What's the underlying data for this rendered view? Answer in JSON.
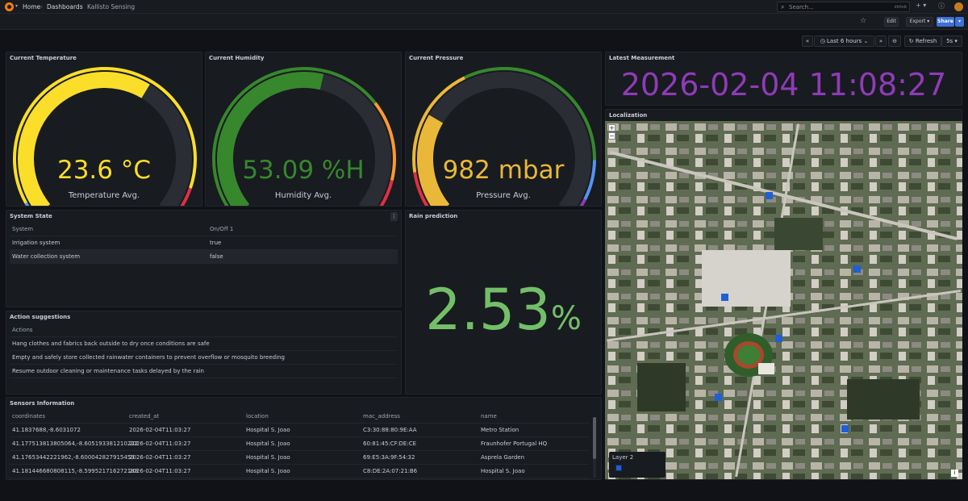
{
  "breadcrumbs": [
    "Home",
    "Dashboards",
    "Kallisto Sensing"
  ],
  "search": {
    "placeholder": "Search...",
    "shortcut": "ctrl+k"
  },
  "toolbar": {
    "edit": "Edit",
    "export": "Export",
    "share": "Share"
  },
  "time": {
    "range": "Last 6 hours",
    "refresh": "Refresh",
    "interval": "5s"
  },
  "gauges": [
    {
      "title": "Current Temperature",
      "value": "23.6 °C",
      "label": "Temperature Avg.",
      "value_color": "#fade2a",
      "fill_fraction": 0.62,
      "fill_color": "#fade2a"
    },
    {
      "title": "Current Humidity",
      "value": "53.09 %H",
      "label": "Humidity Avg.",
      "value_color": "#37872d",
      "fill_fraction": 0.55,
      "fill_color": "#37872d"
    },
    {
      "title": "Current Pressure",
      "value": "982 mbar",
      "label": "Pressure Avg.",
      "value_color": "#eab839",
      "fill_fraction": 0.27,
      "fill_color": "#eab839"
    }
  ],
  "latest": {
    "title": "Latest Measurement",
    "value": "2026-02-04 11:08:27",
    "color": "#8f3bb8"
  },
  "localization": {
    "title": "Localization",
    "legend": "Layer 2",
    "zoom_in": "+",
    "zoom_out": "−"
  },
  "system_state": {
    "title": "System State",
    "columns": [
      "System",
      "On/Off 1"
    ],
    "rows": [
      [
        "Irrigation system",
        "true"
      ],
      [
        "Water collection system",
        "false"
      ]
    ]
  },
  "rain": {
    "title": "Rain prediction",
    "value": "2.53",
    "unit": "%",
    "color": "#73bf69"
  },
  "actions": {
    "title": "Action suggestions",
    "column": "Actions",
    "rows": [
      "Hang clothes and fabrics back outside to dry once conditions are safe",
      "Empty and safely store collected rainwater containers to prevent overflow or mosquito breeding",
      "Resume outdoor cleaning or maintenance tasks delayed by the rain"
    ]
  },
  "sensors": {
    "title": "Sensors Information",
    "columns": [
      "coordinates",
      "created_at",
      "location",
      "mac_address",
      "name"
    ],
    "rows": [
      [
        "41.1837688,-8.6031072",
        "2026-02-04T11:03:27",
        "Hospital S. Joao",
        "C3:30:88:80:9E:AA",
        "Metro Station"
      ],
      [
        "41.177513813805064,-8.605193381210222",
        "2026-02-04T11:03:27",
        "Hospital S. Joao",
        "60:81:45:CF:DE:CE",
        "Fraunhofer Portugal HQ"
      ],
      [
        "41.17653442221962,-8.600042827915459",
        "2026-02-04T11:03:27",
        "Hospital S. Joao",
        "69:E5:3A:9F:54:32",
        "Asprela Garden"
      ],
      [
        "41.18144668080811​5,-8.599521716272188",
        "2026-02-04T11:03:27",
        "Hospital S. Joao",
        "C8:DE:2A:07:21:B6",
        "Hospital S. Joao"
      ]
    ]
  }
}
